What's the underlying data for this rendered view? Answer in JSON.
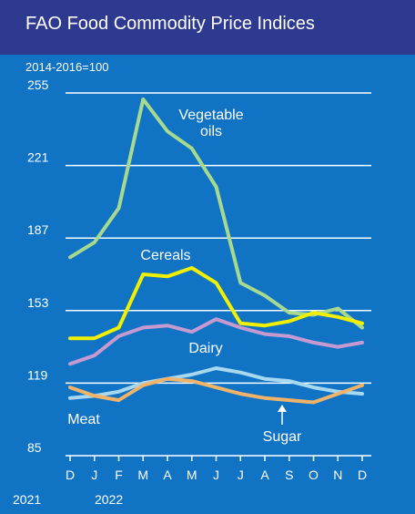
{
  "chart_data": {
    "type": "line",
    "title": "FAO Food Commodity Price Indices",
    "subtitle": "2014-2016=100",
    "categories": [
      "D",
      "J",
      "F",
      "M",
      "A",
      "M",
      "J",
      "J",
      "A",
      "S",
      "O",
      "N",
      "D"
    ],
    "year_labels": [
      "2021",
      "2022"
    ],
    "ylim": [
      85,
      255
    ],
    "yticks": [
      85,
      119,
      153,
      187,
      221,
      255
    ],
    "grid": true,
    "series": [
      {
        "name": "Vegetable oils",
        "label_lines": [
          "Vegetable",
          "oils"
        ],
        "color": "#a7d98f",
        "values": [
          178,
          185,
          201,
          252,
          237,
          229,
          211,
          166,
          160,
          152,
          151,
          154,
          145
        ]
      },
      {
        "name": "Cereals",
        "label_lines": [
          "Cereals"
        ],
        "color": "#f0f000",
        "values": [
          140,
          140,
          145,
          170,
          169,
          173,
          166,
          147,
          146,
          148,
          152,
          150,
          147
        ]
      },
      {
        "name": "Dairy",
        "label_lines": [
          "Dairy"
        ],
        "color": "#c49ad0",
        "values": [
          128,
          132,
          141,
          145,
          146,
          143,
          149,
          145,
          142,
          141,
          138,
          136,
          138
        ]
      },
      {
        "name": "Meat",
        "label_lines": [
          "Meat"
        ],
        "color": "#a8d8f0",
        "values": [
          112,
          113,
          115,
          119,
          121,
          123,
          126,
          124,
          121,
          120,
          117,
          115,
          114
        ]
      },
      {
        "name": "Sugar",
        "label_lines": [
          "Sugar"
        ],
        "color": "#f0b36a",
        "values": [
          117,
          113,
          111,
          118,
          121,
          120,
          117,
          114,
          112,
          111,
          110,
          114,
          118
        ]
      }
    ]
  }
}
